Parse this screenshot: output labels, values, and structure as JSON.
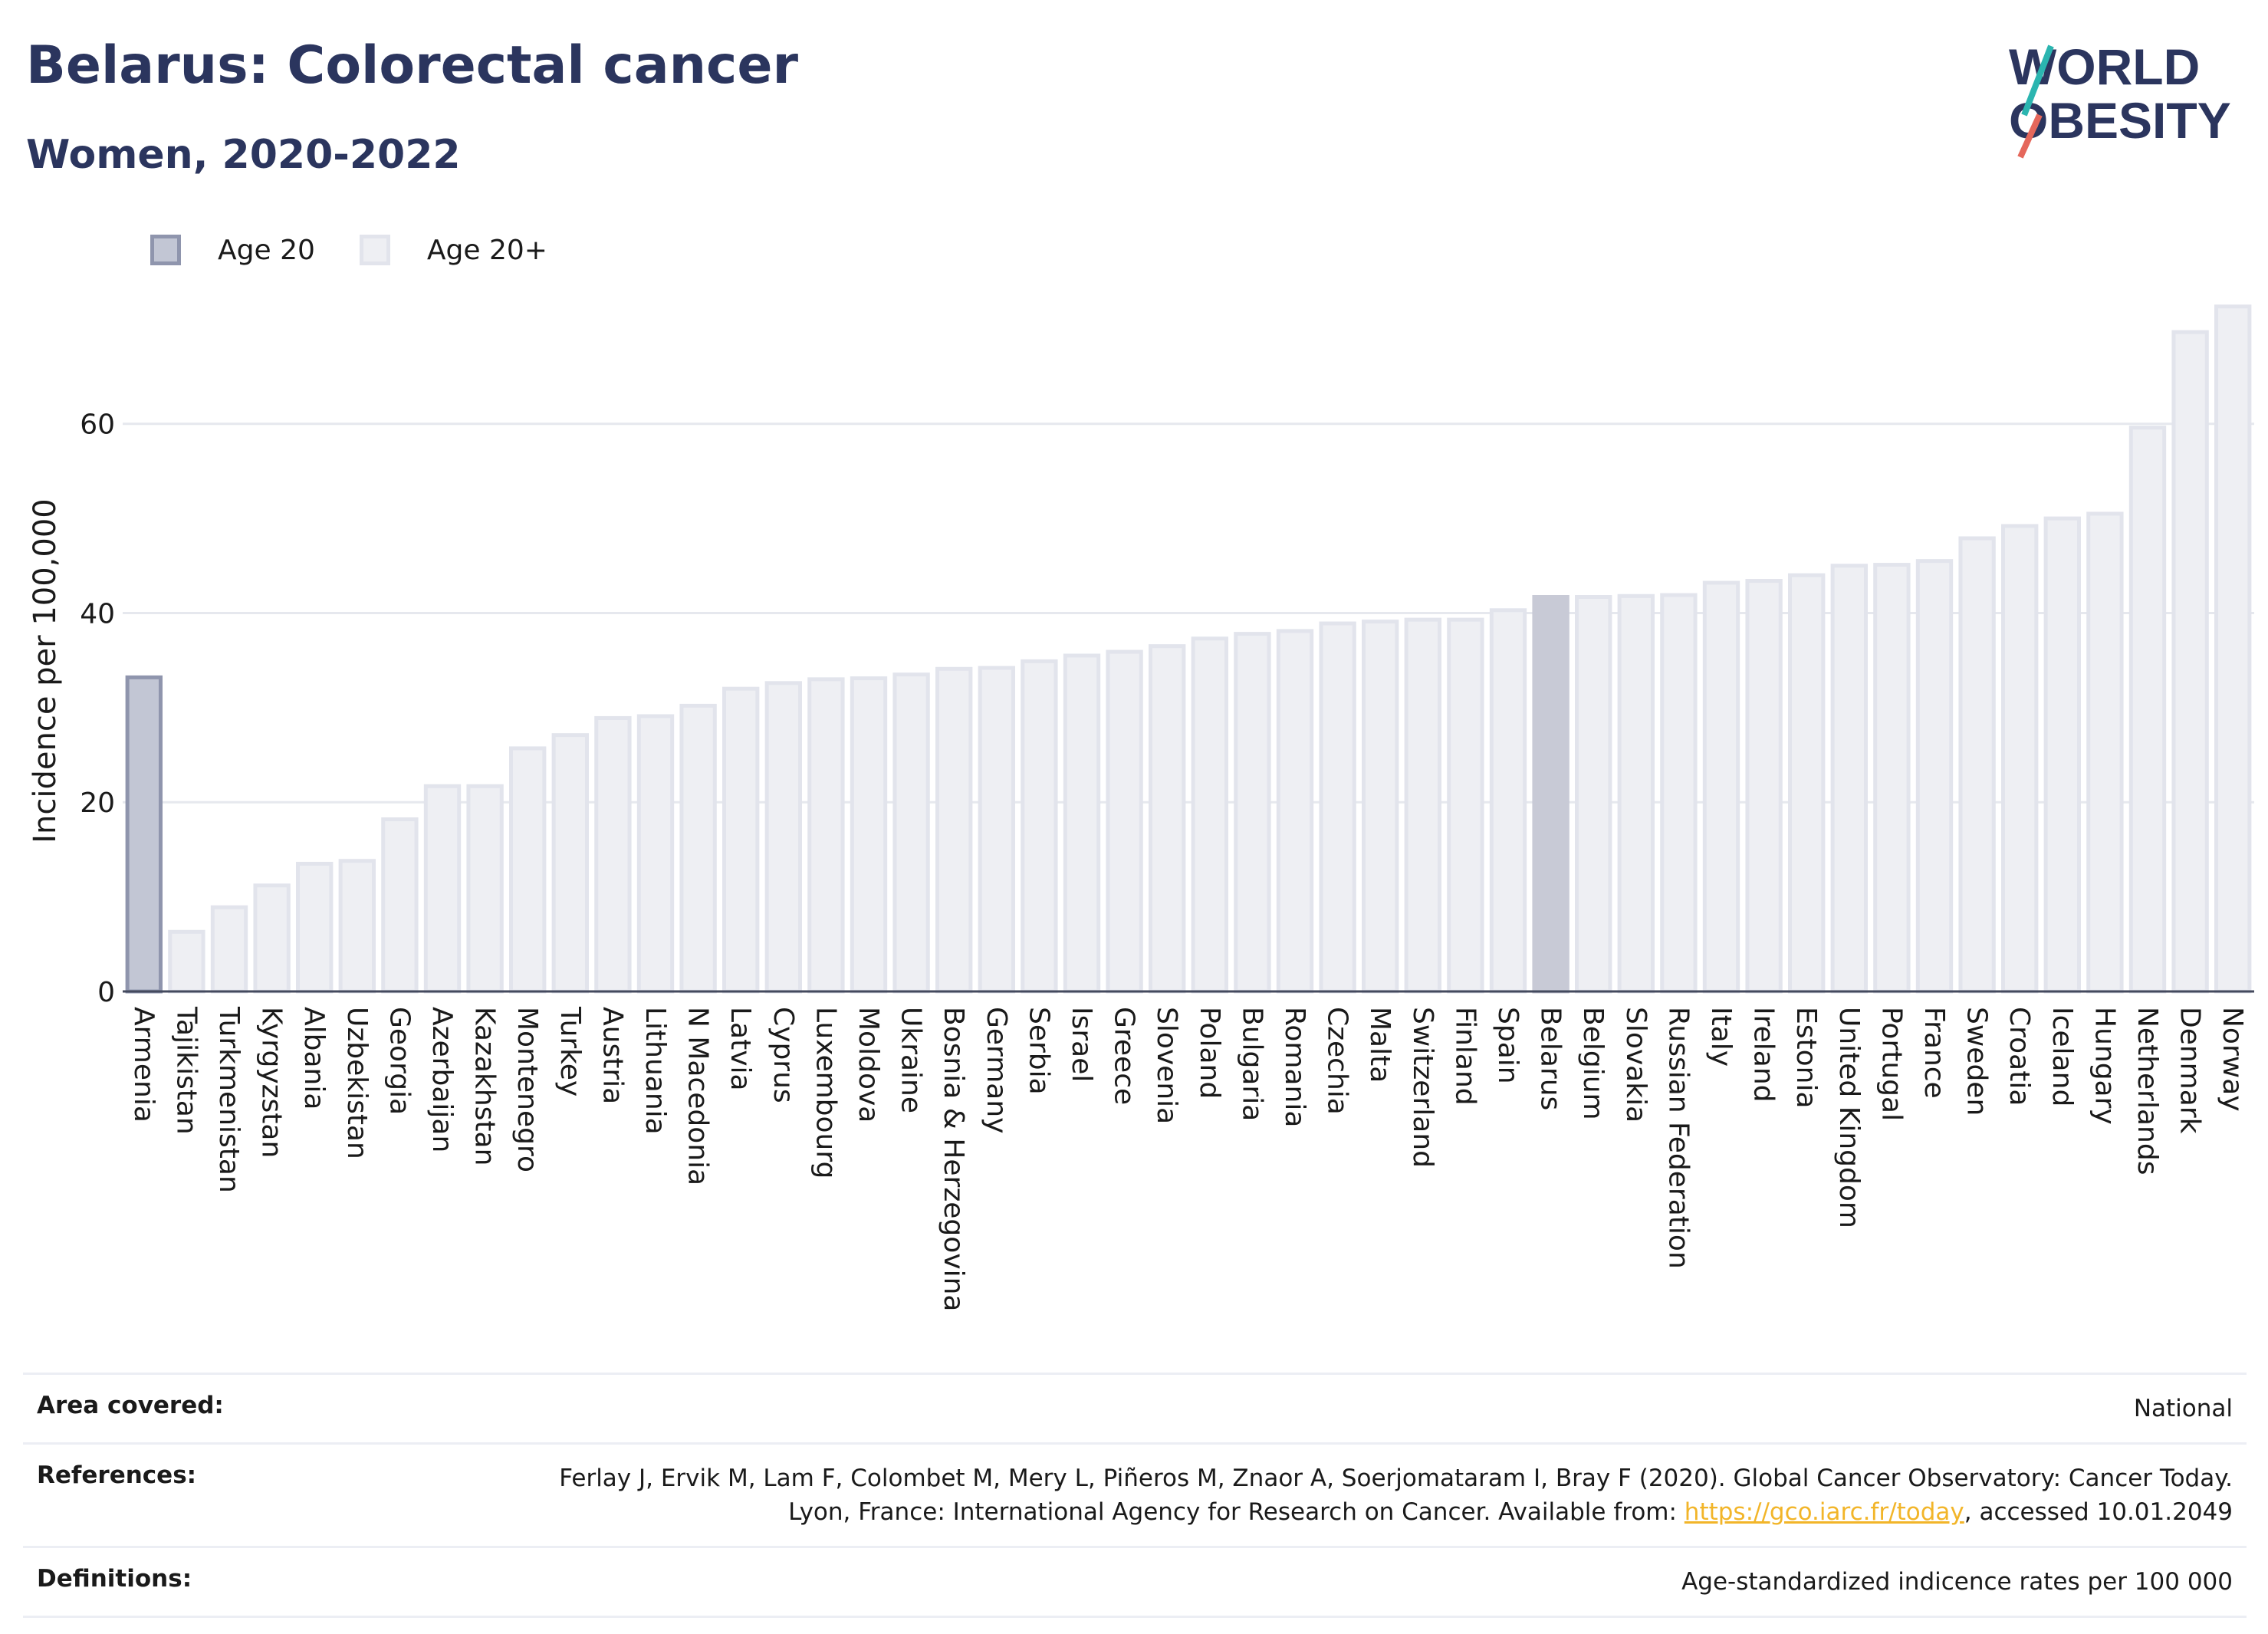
{
  "header": {
    "title": "Belarus: Colorectal cancer",
    "subtitle": "Women, 2020-2022"
  },
  "logo": {
    "line1": "WORLD",
    "line2": "OBESITY"
  },
  "legend": [
    {
      "label": "Age 20",
      "fill": "#c2c6d4",
      "stroke": "#8f95ad"
    },
    {
      "label": "Age 20+",
      "fill": "#eeeff3",
      "stroke": "#e2e4ec"
    }
  ],
  "colors": {
    "highlight": "#c8cad6",
    "age20_fill": "#c2c6d4",
    "age20_stroke": "#8f95ad",
    "age20plus_fill": "#eeeff3",
    "age20plus_stroke": "#e2e4ec",
    "title": "#2b355e",
    "link": "#f2b529"
  },
  "chart_data": {
    "type": "bar",
    "ylabel": "Incidence per 100,000",
    "ylim": [
      0,
      74
    ],
    "yticks": [
      0,
      20,
      40,
      60
    ],
    "grid": true,
    "legend_position": "top-left",
    "highlight_category": "Belarus",
    "categories": [
      "Armenia",
      "Tajikistan",
      "Turkmenistan",
      "Kyrgyzstan",
      "Albania",
      "Uzbekistan",
      "Georgia",
      "Azerbaijan",
      "Kazakhstan",
      "Montenegro",
      "Turkey",
      "Austria",
      "Lithuania",
      "N Macedonia",
      "Latvia",
      "Cyprus",
      "Luxembourg",
      "Moldova",
      "Ukraine",
      "Bosnia & Herzegovina",
      "Germany",
      "Serbia",
      "Israel",
      "Greece",
      "Slovenia",
      "Poland",
      "Bulgaria",
      "Romania",
      "Czechia",
      "Malta",
      "Switzerland",
      "Finland",
      "Spain",
      "Belarus",
      "Belgium",
      "Slovakia",
      "Russian Federation",
      "Italy",
      "Ireland",
      "Estonia",
      "United Kingdom",
      "Portugal",
      "France",
      "Sweden",
      "Croatia",
      "Iceland",
      "Hungary",
      "Netherlands",
      "Denmark",
      "Norway"
    ],
    "series": [
      {
        "name": "Age 20",
        "values": [
          33.2,
          null,
          null,
          null,
          null,
          null,
          null,
          null,
          null,
          null,
          null,
          null,
          null,
          null,
          null,
          null,
          null,
          null,
          null,
          null,
          null,
          null,
          null,
          null,
          null,
          null,
          null,
          null,
          null,
          null,
          null,
          null,
          null,
          null,
          null,
          null,
          null,
          null,
          null,
          null,
          null,
          null,
          null,
          null,
          null,
          null,
          null,
          null,
          null,
          null
        ]
      },
      {
        "name": "Age 20+",
        "values": [
          null,
          6.3,
          8.9,
          11.2,
          13.5,
          13.8,
          18.2,
          21.7,
          21.7,
          25.7,
          27.1,
          28.9,
          29.1,
          30.2,
          32.0,
          32.6,
          33.0,
          33.1,
          33.5,
          34.1,
          34.2,
          34.9,
          35.5,
          35.9,
          36.5,
          37.3,
          37.8,
          38.1,
          38.9,
          39.1,
          39.3,
          39.3,
          40.3,
          41.7,
          41.7,
          41.8,
          41.9,
          43.2,
          43.4,
          44.0,
          45.0,
          45.1,
          45.5,
          47.9,
          49.2,
          50.0,
          50.5,
          59.6,
          69.7,
          72.4
        ]
      }
    ]
  },
  "footer": {
    "area": {
      "label": "Area covered:",
      "value": "National"
    },
    "references": {
      "label": "References:",
      "text1": "Ferlay J, Ervik M, Lam F, Colombet M, Mery L, Piñeros M, Znaor A, Soerjomataram I, Bray F (2020). Global Cancer Observatory: Cancer Today. Lyon, France: International Agency for Research on Cancer. Available from: ",
      "link": "https://gco.iarc.fr/today",
      "text2": ", accessed 10.01.2049"
    },
    "definitions": {
      "label": "Definitions:",
      "value": "Age-standardized indicence rates per 100 000"
    }
  }
}
